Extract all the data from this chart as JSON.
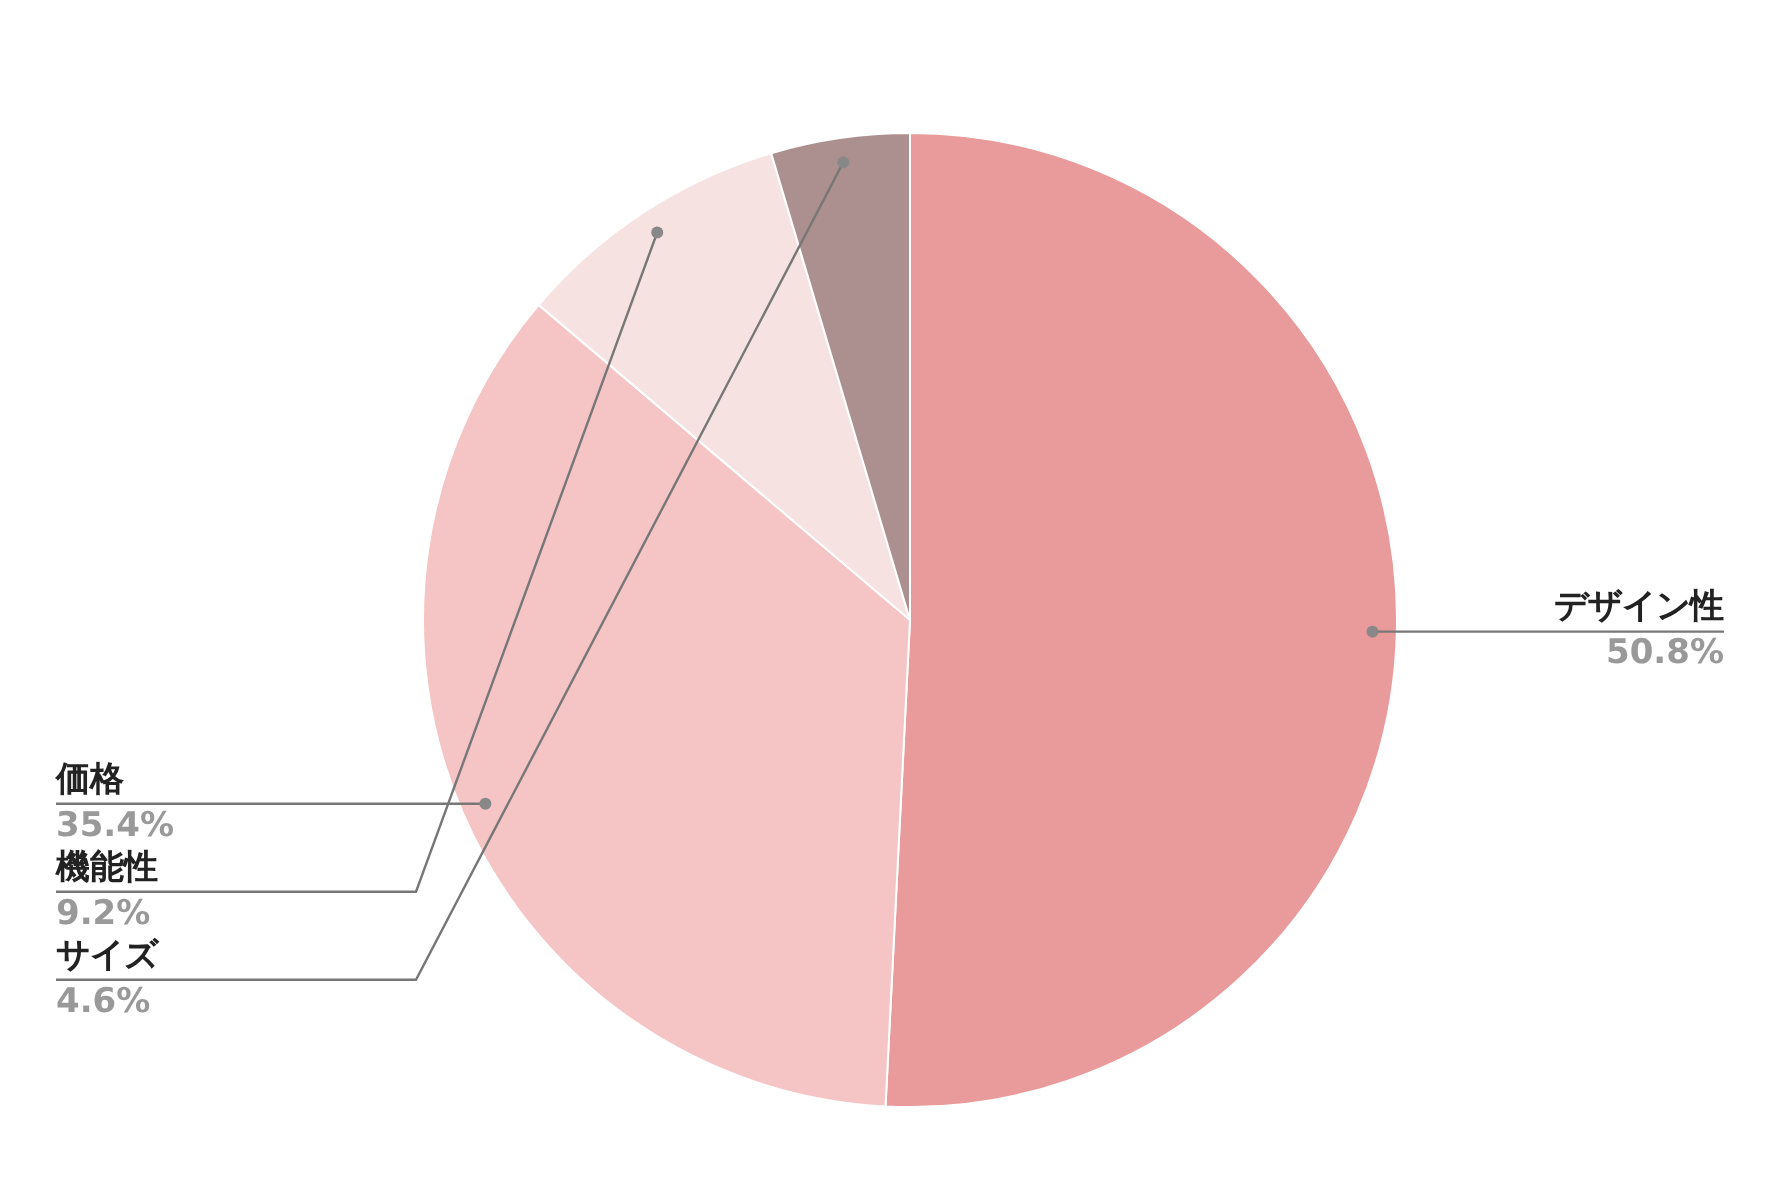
{
  "chart_data": {
    "type": "pie",
    "categories": [
      "デザイン性",
      "価格",
      "機能性",
      "サイズ"
    ],
    "values": [
      50.8,
      35.4,
      9.2,
      4.6
    ],
    "colors": [
      "#e99a9a",
      "#f5c4c4",
      "#f7e2e2",
      "#ac8f8f"
    ],
    "value_labels": [
      "50.8%",
      "35.4%",
      "9.2%",
      "4.6%"
    ],
    "legend": false
  }
}
